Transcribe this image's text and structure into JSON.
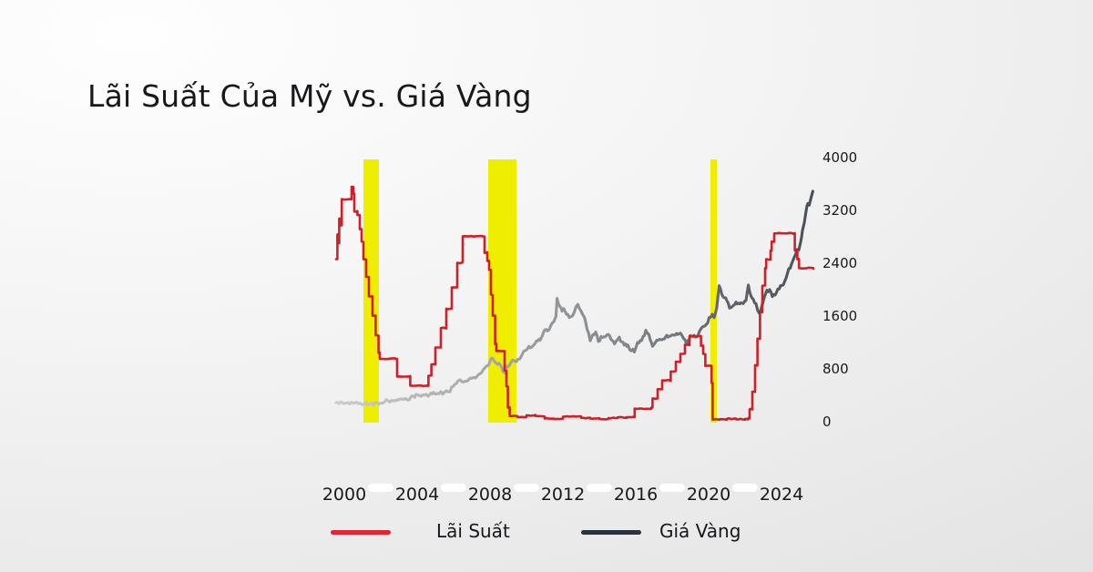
{
  "title": "Lãi Suất Của Mỹ vs. Giá Vàng",
  "colors": {
    "interest_line": "#cd2129",
    "legend_interest": "#e02633",
    "legend_gold": "#2c333f",
    "highlight_band": "#f0ee00",
    "gold_gradient": [
      "#cbccce",
      "#b2b4b6",
      "#9a9da0",
      "#84878b",
      "#626godot",
      " "
    ],
    "text": "#17191c"
  },
  "legend": {
    "items": [
      {
        "label": "Lãi Suất",
        "color": "#e02633"
      },
      {
        "label": "Giá Vàng",
        "color": "#2c333f"
      }
    ]
  },
  "chart_data": {
    "type": "line",
    "title": "Lãi Suất Của Mỹ vs. Giá Vàng",
    "grid": false,
    "legend_position": "bottom",
    "x_ticks": [
      2000,
      2004,
      2008,
      2012,
      2016,
      2020,
      2024
    ],
    "x_range": [
      1999.5,
      2025.8
    ],
    "y_right_ticks": [
      4000,
      3200,
      2400,
      1600,
      800,
      0
    ],
    "y_right_range": [
      0,
      4000
    ],
    "highlight_color": "#f0ee00",
    "highlight_bands_x": [
      [
        2001.05,
        2001.9
      ],
      [
        2007.9,
        2009.45
      ],
      [
        2020.1,
        2020.45
      ]
    ],
    "series": [
      {
        "name": "Lãi Suất",
        "unit": "%",
        "axis": "hidden_left_percent",
        "style": "step",
        "color": "#cd2129",
        "scale_note": "1% on the hidden rate axis spans the same pixels as 535 units of the right gold axis",
        "points": [
          [
            1999.55,
            4.6
          ],
          [
            1999.62,
            5.3
          ],
          [
            1999.66,
            5.05
          ],
          [
            1999.72,
            5.75
          ],
          [
            1999.78,
            5.55
          ],
          [
            1999.86,
            6.3
          ],
          [
            2000.3,
            6.3
          ],
          [
            2000.4,
            6.65
          ],
          [
            2000.5,
            6.45
          ],
          [
            2000.55,
            5.95
          ],
          [
            2000.72,
            5.85
          ],
          [
            2000.85,
            5.45
          ],
          [
            2000.95,
            5.1
          ],
          [
            2001.05,
            4.6
          ],
          [
            2001.2,
            4.1
          ],
          [
            2001.35,
            3.55
          ],
          [
            2001.55,
            3.0
          ],
          [
            2001.72,
            2.45
          ],
          [
            2001.88,
            1.95
          ],
          [
            2001.95,
            1.78
          ],
          [
            2002.8,
            1.78
          ],
          [
            2002.9,
            1.28
          ],
          [
            2003.55,
            1.28
          ],
          [
            2003.62,
            1.02
          ],
          [
            2004.48,
            1.02
          ],
          [
            2004.62,
            1.3
          ],
          [
            2004.78,
            1.62
          ],
          [
            2005.0,
            2.1
          ],
          [
            2005.3,
            2.65
          ],
          [
            2005.6,
            3.2
          ],
          [
            2005.9,
            3.8
          ],
          [
            2006.2,
            4.5
          ],
          [
            2006.5,
            5.25
          ],
          [
            2007.55,
            5.25
          ],
          [
            2007.7,
            4.78
          ],
          [
            2007.85,
            4.55
          ],
          [
            2007.95,
            4.3
          ],
          [
            2008.05,
            3.6
          ],
          [
            2008.15,
            3.0
          ],
          [
            2008.28,
            2.2
          ],
          [
            2008.35,
            2.0
          ],
          [
            2008.7,
            2.0
          ],
          [
            2008.8,
            1.45
          ],
          [
            2008.9,
            1.0
          ],
          [
            2008.98,
            0.4
          ],
          [
            2009.08,
            0.16
          ],
          [
            2009.5,
            0.13
          ],
          [
            2010.0,
            0.18
          ],
          [
            2010.5,
            0.16
          ],
          [
            2011.0,
            0.09
          ],
          [
            2011.5,
            0.08
          ],
          [
            2012.0,
            0.14
          ],
          [
            2012.5,
            0.15
          ],
          [
            2013.0,
            0.11
          ],
          [
            2013.5,
            0.09
          ],
          [
            2014.0,
            0.08
          ],
          [
            2014.5,
            0.1
          ],
          [
            2015.0,
            0.12
          ],
          [
            2015.5,
            0.13
          ],
          [
            2015.88,
            0.14
          ],
          [
            2015.94,
            0.37
          ],
          [
            2016.85,
            0.4
          ],
          [
            2016.92,
            0.66
          ],
          [
            2017.2,
            0.92
          ],
          [
            2017.45,
            1.17
          ],
          [
            2017.92,
            1.42
          ],
          [
            2018.2,
            1.7
          ],
          [
            2018.45,
            1.92
          ],
          [
            2018.7,
            2.18
          ],
          [
            2018.95,
            2.42
          ],
          [
            2019.5,
            2.42
          ],
          [
            2019.58,
            2.15
          ],
          [
            2019.7,
            1.92
          ],
          [
            2019.82,
            1.58
          ],
          [
            2020.1,
            1.58
          ],
          [
            2020.16,
            1.1
          ],
          [
            2020.22,
            0.06
          ],
          [
            2020.6,
            0.07
          ],
          [
            2021.0,
            0.08
          ],
          [
            2021.5,
            0.07
          ],
          [
            2022.0,
            0.08
          ],
          [
            2022.18,
            0.1
          ],
          [
            2022.25,
            0.35
          ],
          [
            2022.4,
            0.85
          ],
          [
            2022.55,
            1.6
          ],
          [
            2022.68,
            2.35
          ],
          [
            2022.82,
            3.1
          ],
          [
            2022.95,
            3.85
          ],
          [
            2023.1,
            4.35
          ],
          [
            2023.16,
            4.6
          ],
          [
            2023.4,
            4.85
          ],
          [
            2023.46,
            5.1
          ],
          [
            2023.6,
            5.33
          ],
          [
            2024.68,
            5.33
          ],
          [
            2024.73,
            4.85
          ],
          [
            2024.82,
            4.85
          ],
          [
            2024.87,
            4.6
          ],
          [
            2024.96,
            4.35
          ],
          [
            2025.75,
            4.33
          ]
        ]
      },
      {
        "name": "Giá Vàng",
        "unit": "USD/oz",
        "axis": "right",
        "style": "line",
        "color_gradient": [
          "#cbccce",
          "#b2b4b6",
          "#9a9da0",
          "#84878b",
          "#63676d",
          "#4b4f56"
        ],
        "points": [
          [
            1999.55,
            288
          ],
          [
            1999.8,
            292
          ],
          [
            2000.0,
            284
          ],
          [
            2000.3,
            279
          ],
          [
            2000.6,
            275
          ],
          [
            2001.0,
            266
          ],
          [
            2001.3,
            260
          ],
          [
            2001.6,
            271
          ],
          [
            2001.9,
            277
          ],
          [
            2002.2,
            300
          ],
          [
            2002.5,
            315
          ],
          [
            2002.8,
            322
          ],
          [
            2003.0,
            348
          ],
          [
            2003.25,
            338
          ],
          [
            2003.55,
            358
          ],
          [
            2003.8,
            382
          ],
          [
            2004.0,
            408
          ],
          [
            2004.3,
            394
          ],
          [
            2004.6,
            402
          ],
          [
            2004.9,
            436
          ],
          [
            2005.2,
            428
          ],
          [
            2005.5,
            433
          ],
          [
            2005.8,
            472
          ],
          [
            2006.05,
            555
          ],
          [
            2006.35,
            640
          ],
          [
            2006.55,
            588
          ],
          [
            2006.8,
            622
          ],
          [
            2007.0,
            648
          ],
          [
            2007.3,
            700
          ],
          [
            2007.55,
            760
          ],
          [
            2007.8,
            840
          ],
          [
            2008.0,
            910
          ],
          [
            2008.15,
            965
          ],
          [
            2008.35,
            900
          ],
          [
            2008.55,
            875
          ],
          [
            2008.72,
            780
          ],
          [
            2008.82,
            742
          ],
          [
            2008.92,
            812
          ],
          [
            2009.05,
            880
          ],
          [
            2009.25,
            905
          ],
          [
            2009.45,
            930
          ],
          [
            2009.65,
            955
          ],
          [
            2009.85,
            1050
          ],
          [
            2010.05,
            1105
          ],
          [
            2010.3,
            1130
          ],
          [
            2010.55,
            1205
          ],
          [
            2010.75,
            1255
          ],
          [
            2010.95,
            1355
          ],
          [
            2011.15,
            1385
          ],
          [
            2011.35,
            1445
          ],
          [
            2011.5,
            1525
          ],
          [
            2011.62,
            1600
          ],
          [
            2011.68,
            1880
          ],
          [
            2011.75,
            1805
          ],
          [
            2011.85,
            1752
          ],
          [
            2011.95,
            1685
          ],
          [
            2012.05,
            1720
          ],
          [
            2012.2,
            1650
          ],
          [
            2012.35,
            1595
          ],
          [
            2012.55,
            1605
          ],
          [
            2012.72,
            1755
          ],
          [
            2012.82,
            1772
          ],
          [
            2013.0,
            1668
          ],
          [
            2013.18,
            1598
          ],
          [
            2013.32,
            1420
          ],
          [
            2013.5,
            1238
          ],
          [
            2013.65,
            1322
          ],
          [
            2013.8,
            1332
          ],
          [
            2013.95,
            1222
          ],
          [
            2014.1,
            1262
          ],
          [
            2014.3,
            1302
          ],
          [
            2014.5,
            1312
          ],
          [
            2014.7,
            1232
          ],
          [
            2014.9,
            1182
          ],
          [
            2015.1,
            1262
          ],
          [
            2015.3,
            1192
          ],
          [
            2015.5,
            1152
          ],
          [
            2015.7,
            1102
          ],
          [
            2015.92,
            1062
          ],
          [
            2016.1,
            1182
          ],
          [
            2016.32,
            1242
          ],
          [
            2016.55,
            1362
          ],
          [
            2016.72,
            1322
          ],
          [
            2016.92,
            1132
          ],
          [
            2017.1,
            1212
          ],
          [
            2017.3,
            1252
          ],
          [
            2017.5,
            1242
          ],
          [
            2017.7,
            1292
          ],
          [
            2017.9,
            1282
          ],
          [
            2018.1,
            1332
          ],
          [
            2018.3,
            1322
          ],
          [
            2018.45,
            1342
          ],
          [
            2018.62,
            1252
          ],
          [
            2018.8,
            1192
          ],
          [
            2019.0,
            1292
          ],
          [
            2019.2,
            1302
          ],
          [
            2019.4,
            1292
          ],
          [
            2019.6,
            1422
          ],
          [
            2019.8,
            1482
          ],
          [
            2019.95,
            1522
          ],
          [
            2020.1,
            1582
          ],
          [
            2020.2,
            1642
          ],
          [
            2020.3,
            1582
          ],
          [
            2020.45,
            1732
          ],
          [
            2020.58,
            2052
          ],
          [
            2020.72,
            1932
          ],
          [
            2020.88,
            1882
          ],
          [
            2021.0,
            1852
          ],
          [
            2021.15,
            1732
          ],
          [
            2021.3,
            1742
          ],
          [
            2021.5,
            1802
          ],
          [
            2021.7,
            1792
          ],
          [
            2021.9,
            1802
          ],
          [
            2022.05,
            1852
          ],
          [
            2022.18,
            2042
          ],
          [
            2022.32,
            1892
          ],
          [
            2022.45,
            1842
          ],
          [
            2022.6,
            1772
          ],
          [
            2022.78,
            1632
          ],
          [
            2022.92,
            1752
          ],
          [
            2023.05,
            1872
          ],
          [
            2023.2,
            1992
          ],
          [
            2023.35,
            2002
          ],
          [
            2023.5,
            1922
          ],
          [
            2023.65,
            1932
          ],
          [
            2023.8,
            1992
          ],
          [
            2023.95,
            2062
          ],
          [
            2024.1,
            2082
          ],
          [
            2024.25,
            2182
          ],
          [
            2024.4,
            2302
          ],
          [
            2024.55,
            2382
          ],
          [
            2024.7,
            2482
          ],
          [
            2024.85,
            2622
          ],
          [
            2024.95,
            2602
          ],
          [
            2025.05,
            2722
          ],
          [
            2025.15,
            2882
          ],
          [
            2025.25,
            3002
          ],
          [
            2025.35,
            3182
          ],
          [
            2025.45,
            3302
          ],
          [
            2025.52,
            3262
          ],
          [
            2025.62,
            3382
          ],
          [
            2025.72,
            3490
          ]
        ]
      }
    ]
  }
}
